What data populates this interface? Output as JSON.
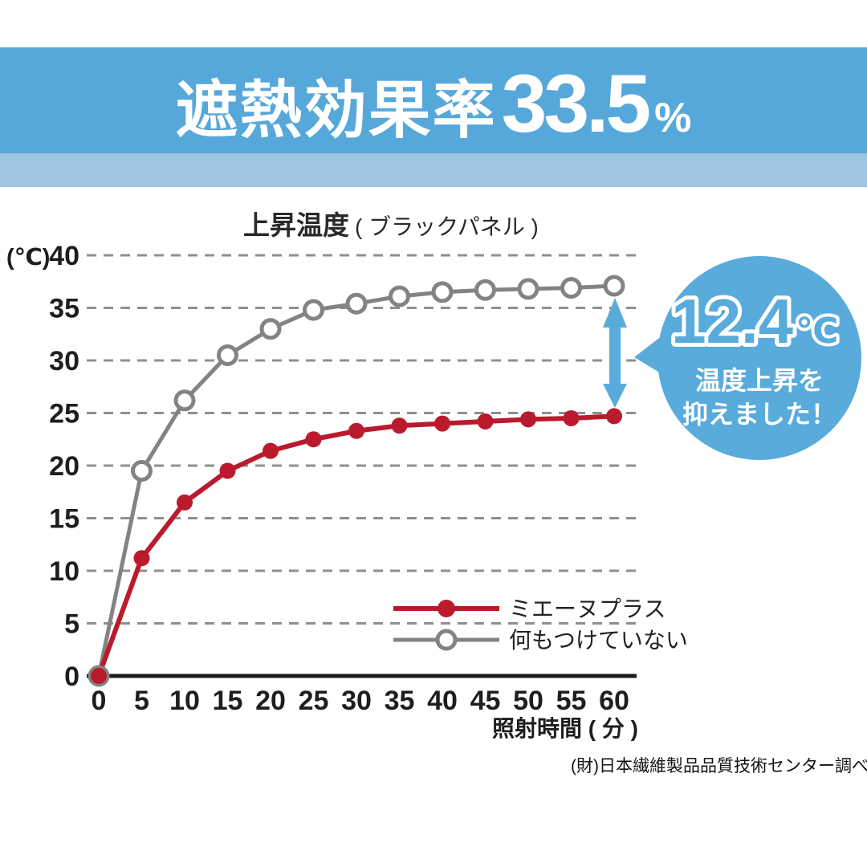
{
  "header": {
    "prefix": "遮熱効果率",
    "value": "33.5",
    "unit": "%"
  },
  "chart": {
    "title_main": "上昇温度",
    "title_sub": "( ブラックパネル )",
    "y_unit_label": "(℃)",
    "x_axis_label": "照射時間 ( 分 )",
    "y_ticks": [
      40,
      35,
      30,
      25,
      20,
      15,
      10,
      5,
      0
    ],
    "x_ticks": [
      0,
      5,
      10,
      15,
      20,
      25,
      30,
      35,
      40,
      45,
      50,
      55,
      60
    ]
  },
  "chart_data": {
    "type": "line",
    "title": "上昇温度 ( ブラックパネル )",
    "xlabel": "照射時間 ( 分 )",
    "ylabel": "(℃)",
    "xlim": [
      0,
      60
    ],
    "ylim": [
      0,
      40
    ],
    "grid": "horizontal-dashed",
    "legend_position": "inside-bottom-right",
    "x": [
      0,
      5,
      10,
      15,
      20,
      25,
      30,
      35,
      40,
      45,
      50,
      55,
      60
    ],
    "series": [
      {
        "name": "ミエーヌプラス",
        "color": "#bb1a2d",
        "marker": "filled-circle",
        "values": [
          0,
          11.2,
          16.5,
          19.5,
          21.4,
          22.5,
          23.3,
          23.8,
          24.0,
          24.2,
          24.4,
          24.5,
          24.7
        ]
      },
      {
        "name": "何もつけていない",
        "color": "#838383",
        "marker": "open-circle",
        "values": [
          0,
          19.5,
          26.2,
          30.5,
          33.0,
          34.8,
          35.4,
          36.1,
          36.5,
          36.7,
          36.8,
          36.9,
          37.1
        ]
      }
    ]
  },
  "callout": {
    "value": "12.4",
    "unit": "℃",
    "line1": "温度上昇を",
    "line2": "抑えました！"
  },
  "source": "(財)日本繊維製品品質技術センター調べ",
  "colors": {
    "banner_blue": "#57a8da",
    "strip_blue": "#9ec6e2",
    "bubble_blue": "#58abdb",
    "series_red": "#bb1a2d",
    "series_gray": "#838383"
  }
}
